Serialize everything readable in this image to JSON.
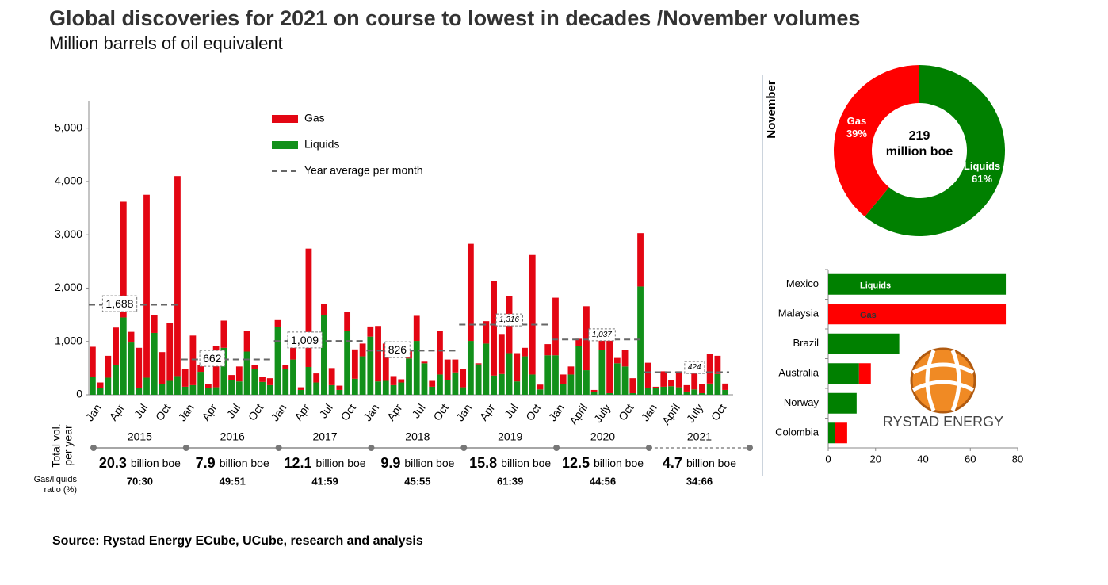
{
  "title": "Global discoveries for 2021 on course to lowest in decades /November volumes",
  "subtitle": "Million barrels of oil equivalent",
  "source": "Source: Rystad Energy ECube, UCube, research and analysis",
  "logo": "RYSTAD ENERGY",
  "chart_data": [
    {
      "type": "bar",
      "stacked": true,
      "categories": [
        "Jan",
        null,
        null,
        "Apr",
        null,
        null,
        "Jul",
        null,
        null,
        "Oct",
        null,
        null,
        "Jan",
        null,
        null,
        "Apr",
        null,
        null,
        "Jul",
        null,
        null,
        "Oct",
        null,
        null,
        "Jan",
        null,
        null,
        "Apr",
        null,
        null,
        "Jul",
        null,
        null,
        "Oct",
        null,
        null,
        "Jan",
        null,
        null,
        "Apr",
        null,
        null,
        "Jul",
        null,
        null,
        "Oct",
        null,
        null,
        "Jan",
        null,
        null,
        "Apr",
        null,
        null,
        "Jul",
        null,
        null,
        "Oct",
        null,
        null,
        "Jan",
        null,
        null,
        "April",
        null,
        null,
        "July",
        null,
        null,
        "Oct",
        null,
        null,
        "Jan",
        null,
        null,
        "April",
        null,
        null,
        "July",
        null,
        null,
        "Oct",
        null
      ],
      "series": [
        {
          "name": "Gas",
          "color": "#e30613",
          "values": [
            570,
            100,
            410,
            710,
            2170,
            200,
            750,
            3430,
            330,
            600,
            1090,
            3750,
            340,
            930,
            130,
            80,
            780,
            510,
            100,
            280,
            390,
            70,
            90,
            130,
            130,
            60,
            320,
            50,
            2220,
            170,
            200,
            320,
            80,
            350,
            550,
            240,
            190,
            1040,
            700,
            170,
            60,
            140,
            470,
            30,
            110,
            820,
            380,
            240,
            350,
            1820,
            20,
            420,
            1780,
            750,
            1070,
            530,
            160,
            2240,
            90,
            210,
            1080,
            180,
            150,
            130,
            1200,
            40,
            200,
            1020,
            100,
            310,
            280,
            1000,
            480,
            30,
            290,
            110,
            300,
            120,
            520,
            170,
            560,
            340,
            120
          ]
        },
        {
          "name": "Liquids",
          "color": "#12901a",
          "values": [
            330,
            130,
            320,
            550,
            1450,
            980,
            130,
            320,
            1160,
            200,
            260,
            350,
            150,
            180,
            430,
            120,
            140,
            880,
            270,
            250,
            810,
            490,
            240,
            180,
            1270,
            490,
            660,
            90,
            520,
            230,
            1500,
            180,
            90,
            1200,
            300,
            720,
            1090,
            250,
            260,
            180,
            230,
            680,
            1010,
            590,
            150,
            380,
            280,
            420,
            140,
            1010,
            570,
            960,
            360,
            390,
            780,
            250,
            720,
            380,
            100,
            740,
            740,
            200,
            380,
            920,
            460,
            50,
            840,
            30,
            590,
            530,
            30,
            2030,
            120,
            120,
            150,
            160,
            140,
            60,
            100,
            30,
            210,
            390,
            90
          ]
        }
      ],
      "average_name": "Year average per month",
      "years": [
        "2015",
        "2016",
        "2017",
        "2018",
        "2019",
        "2020",
        "2021"
      ],
      "year_averages": [
        1688,
        662,
        1009,
        826,
        1316,
        1037,
        424
      ],
      "year_average_labels": [
        "1,688",
        "662",
        "1,009",
        "826",
        "1,316",
        "1,037",
        "424"
      ],
      "total_label": [
        "Total vol.",
        "per year"
      ],
      "year_totals": [
        20.3,
        7.9,
        12.1,
        9.9,
        15.8,
        12.5,
        4.7
      ],
      "total_unit": "billion boe",
      "ratio_label": [
        "Gas/liquids",
        "ratio (%)"
      ],
      "ratios": [
        "70:30",
        "49:51",
        "41:59",
        "45:55",
        "61:39",
        "44:56",
        "34:66"
      ],
      "ylim": [
        0,
        5500
      ],
      "yticks": [
        0,
        {
          "value": 1000,
          "label": "1,000"
        },
        {
          "value": 2000,
          "label": "2,000"
        },
        {
          "value": 3000,
          "label": "3,000"
        },
        {
          "value": 4000,
          "label": "4,000"
        },
        {
          "value": 5000,
          "label": "5,000"
        }
      ]
    },
    {
      "type": "pie",
      "donut": true,
      "side_label": "November",
      "categories": [
        "Gas",
        "Liquids"
      ],
      "values": [
        39,
        61
      ],
      "value_labels": [
        "39%",
        "61%"
      ],
      "colors": [
        "#ff0000",
        "#008000"
      ],
      "center_value": 219,
      "center_unit": "million boe"
    },
    {
      "type": "barh",
      "stacked": true,
      "categories": [
        "Mexico",
        "Malaysia",
        "Brazil",
        "Australia",
        "Norway",
        "Colombia"
      ],
      "series": [
        {
          "name": "Liquids",
          "color": "#008000",
          "values": [
            75,
            0,
            30,
            13,
            12,
            3
          ]
        },
        {
          "name": "Gas",
          "color": "#ff0000",
          "values": [
            0,
            75,
            0,
            5,
            0,
            5
          ]
        }
      ],
      "xlim": [
        0,
        80
      ],
      "xticks": [
        0,
        20,
        40,
        60,
        80
      ]
    }
  ]
}
